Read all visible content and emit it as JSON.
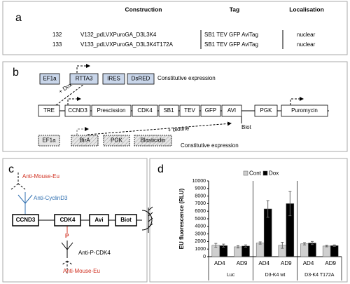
{
  "panel_a": {
    "label": "a",
    "headers": [
      "Construction",
      "Tag",
      "Localisation"
    ],
    "rows": [
      [
        "132",
        "V132_pdLVXPuroGA_D3L3K4",
        "SB1 TEV GFP AviTag",
        "nuclear"
      ],
      [
        "133",
        "V133_pdLVXPuroGA_D3L3K4T172A",
        "SB1 TEV GFP AviTag",
        "nuclear"
      ]
    ]
  },
  "panel_b": {
    "label": "b",
    "row1": [
      "EF1a",
      "RTTA3",
      "IRES",
      "DsRED"
    ],
    "row1_note": "Constitutive expression",
    "dox": "+ Dox",
    "row2": [
      "TRE",
      "CCND3",
      "Prescission",
      "CDK4",
      "SB1",
      "TEV",
      "GFP",
      "AVI",
      "PGK",
      "Puromycin"
    ],
    "biotine": "+ biotine",
    "biot": "Biot",
    "row3": [
      "EF1a",
      "BirA",
      "PGK",
      "Blasticidin"
    ],
    "row3_note": "Constitutive expression"
  },
  "panel_c": {
    "label": "c",
    "anti_mouse_top": "Anti-Mouse-Eu",
    "anti_cyclin": "Anti-CyclinD3",
    "boxes": [
      "CCND3",
      "CDK4",
      "Avi",
      "Biot"
    ],
    "phospho": "P",
    "anti_p_cdk4": "Anti-P-CDK4",
    "anti_mouse_bottom": "Anti-Mouse-Eu"
  },
  "panel_d": {
    "label": "d",
    "type": "bar",
    "y_label": "EU fluorescence (RLU)",
    "groups": [
      "Luc",
      "D3-K4 wt",
      "D3-K4 T172A"
    ],
    "categories": [
      "AD4",
      "AD9",
      "AD4",
      "AD9",
      "AD4",
      "AD9"
    ],
    "series": [
      {
        "name": "Cont",
        "color": "#cfcfcf",
        "values": [
          1500,
          1300,
          1800,
          1500,
          1700,
          1400
        ],
        "errors": [
          250,
          150,
          150,
          400,
          150,
          100
        ]
      },
      {
        "name": "Dox",
        "color": "#000000",
        "values": [
          1450,
          1400,
          6300,
          7000,
          1800,
          1450
        ],
        "errors": [
          200,
          150,
          1100,
          1600,
          200,
          100
        ]
      }
    ],
    "ylim": [
      0,
      10000
    ],
    "yticks": [
      0,
      1000,
      2000,
      3000,
      4000,
      5000,
      6000,
      7000,
      8000,
      9000,
      10000
    ]
  }
}
